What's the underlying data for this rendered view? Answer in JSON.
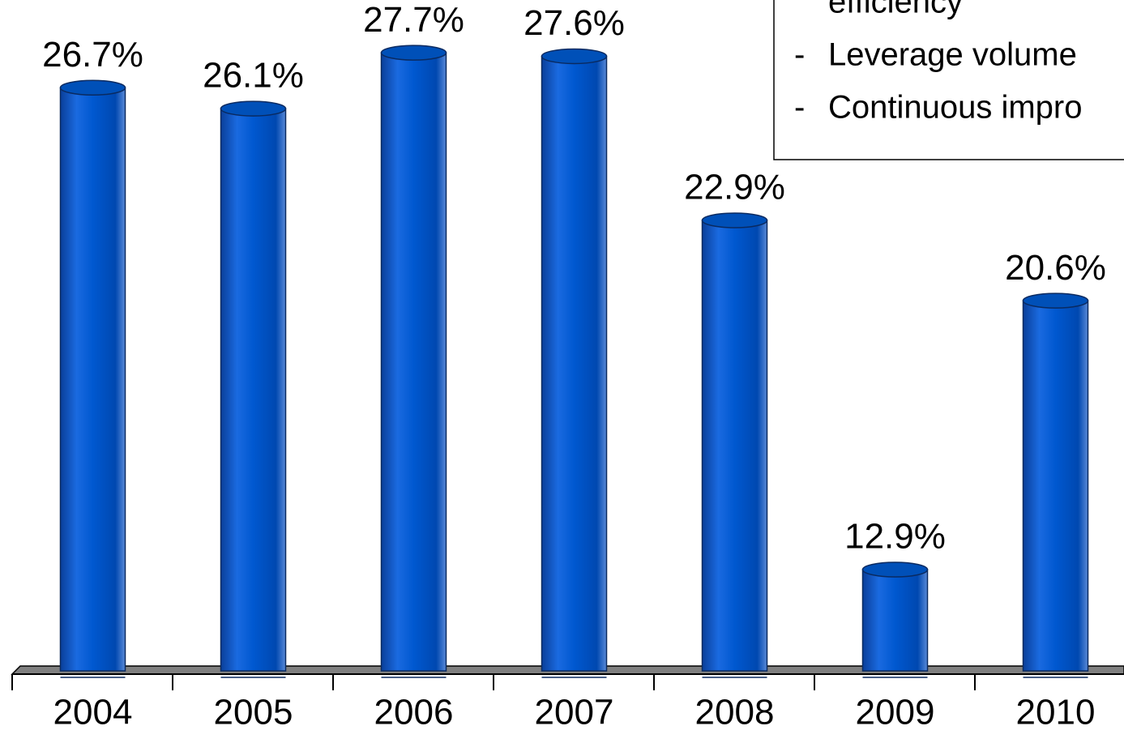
{
  "chart_data": {
    "type": "bar",
    "categories": [
      "2004",
      "2005",
      "2006",
      "2007",
      "2008",
      "2009",
      "2010"
    ],
    "values": [
      26.7,
      26.1,
      27.7,
      27.6,
      22.9,
      12.9,
      20.6
    ],
    "value_labels": [
      "26.7%",
      "26.1%",
      "27.7%",
      "27.6%",
      "22.9%",
      "12.9%",
      "20.6%"
    ],
    "color": "#0055c8",
    "ylim": [
      10,
      30
    ],
    "annotation": {
      "bullet": "-",
      "lines": [
        "efficiency",
        "Leverage volume",
        "Continuous impro"
      ]
    }
  }
}
